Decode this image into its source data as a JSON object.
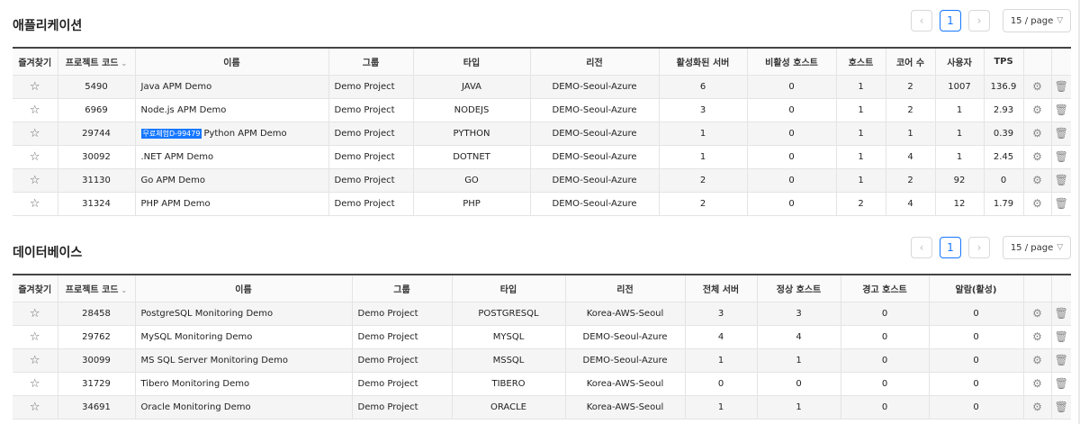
{
  "apps": {
    "title": "애플리케이션",
    "pager": {
      "prev": "‹",
      "page": "1",
      "next": "›",
      "page_size": "15 / page"
    },
    "headers": [
      "즐겨찾기",
      "프로젝트 코드",
      "이름",
      "그룹",
      "타입",
      "리전",
      "활성화된 서버",
      "비활성 호스트",
      "호스트",
      "코어 수",
      "사용자",
      "TPS",
      "",
      ""
    ],
    "rows": [
      {
        "code": "5490",
        "badge": "",
        "name": "Java APM Demo",
        "group": "Demo Project",
        "type": "JAVA",
        "region": "DEMO-Seoul-Azure",
        "active": "6",
        "inactive": "0",
        "hosts": "1",
        "cores": "2",
        "users": "1007",
        "tps": "136.9"
      },
      {
        "code": "6969",
        "badge": "",
        "name": "Node.js APM Demo",
        "group": "Demo Project",
        "type": "NODEJS",
        "region": "DEMO-Seoul-Azure",
        "active": "3",
        "inactive": "0",
        "hosts": "1",
        "cores": "2",
        "users": "1",
        "tps": "2.93"
      },
      {
        "code": "29744",
        "badge": "무료체험D-99479",
        "name": "Python APM Demo",
        "group": "Demo Project",
        "type": "PYTHON",
        "region": "DEMO-Seoul-Azure",
        "active": "1",
        "inactive": "0",
        "hosts": "1",
        "cores": "1",
        "users": "1",
        "tps": "0.39"
      },
      {
        "code": "30092",
        "badge": "",
        "name": ".NET APM Demo",
        "group": "Demo Project",
        "type": "DOTNET",
        "region": "DEMO-Seoul-Azure",
        "active": "1",
        "inactive": "0",
        "hosts": "1",
        "cores": "4",
        "users": "1",
        "tps": "2.45"
      },
      {
        "code": "31130",
        "badge": "",
        "name": "Go APM Demo",
        "group": "Demo Project",
        "type": "GO",
        "region": "DEMO-Seoul-Azure",
        "active": "2",
        "inactive": "0",
        "hosts": "1",
        "cores": "2",
        "users": "92",
        "tps": "0"
      },
      {
        "code": "31324",
        "badge": "",
        "name": "PHP APM Demo",
        "group": "Demo Project",
        "type": "PHP",
        "region": "DEMO-Seoul-Azure",
        "active": "2",
        "inactive": "0",
        "hosts": "2",
        "cores": "4",
        "users": "12",
        "tps": "1.79"
      }
    ]
  },
  "dbs": {
    "title": "데이터베이스",
    "pager": {
      "prev": "‹",
      "page": "1",
      "next": "›",
      "page_size": "15 / page"
    },
    "headers": [
      "즐겨찾기",
      "프로젝트 코드",
      "이름",
      "그룹",
      "타입",
      "리전",
      "전체 서버",
      "정상 호스트",
      "경고 호스트",
      "알람(활성)",
      "",
      ""
    ],
    "rows": [
      {
        "code": "28458",
        "name": "PostgreSQL Monitoring Demo",
        "group": "Demo Project",
        "type": "POSTGRESQL",
        "region": "Korea-AWS-Seoul",
        "total": "3",
        "normal": "3",
        "warn": "0",
        "alarm": "0"
      },
      {
        "code": "29762",
        "name": "MySQL Monitoring Demo",
        "group": "Demo Project",
        "type": "MYSQL",
        "region": "DEMO-Seoul-Azure",
        "total": "4",
        "normal": "4",
        "warn": "0",
        "alarm": "0"
      },
      {
        "code": "30099",
        "name": "MS SQL Server Monitoring Demo",
        "group": "Demo Project",
        "type": "MSSQL",
        "region": "DEMO-Seoul-Azure",
        "total": "1",
        "normal": "1",
        "warn": "0",
        "alarm": "0"
      },
      {
        "code": "31729",
        "name": "Tibero Monitoring Demo",
        "group": "Demo Project",
        "type": "TIBERO",
        "region": "Korea-AWS-Seoul",
        "total": "0",
        "normal": "0",
        "warn": "0",
        "alarm": "0"
      },
      {
        "code": "34691",
        "name": "Oracle Monitoring Demo",
        "group": "Demo Project",
        "type": "ORACLE",
        "region": "Korea-AWS-Seoul",
        "total": "1",
        "normal": "1",
        "warn": "0",
        "alarm": "0"
      }
    ]
  },
  "icons": {
    "star": "star-outline-icon",
    "settings": "gear-icon",
    "delete": "trash-icon",
    "sort": "sort-caret-icon",
    "page_size_chevron": "chevron-down-icon"
  },
  "colors": {
    "accent": "#1677ff",
    "row_alt": "#f5f5f5"
  }
}
